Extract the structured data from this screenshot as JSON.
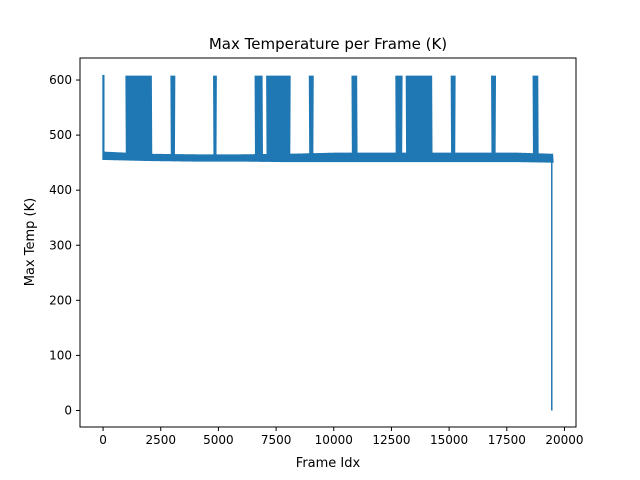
{
  "chart_data": {
    "type": "line",
    "title": "Max Temperature per Frame (K)",
    "xlabel": "Frame Idx",
    "ylabel": "Max Temp (K)",
    "xlim": [
      -1000,
      20500
    ],
    "ylim": [
      -30,
      640
    ],
    "x_ticks": [
      0,
      2500,
      5000,
      7500,
      10000,
      12500,
      15000,
      17500,
      20000
    ],
    "x_tick_labels": [
      "0",
      "2500",
      "5000",
      "7500",
      "10000",
      "12500",
      "15000",
      "17500",
      "20000"
    ],
    "y_ticks": [
      0,
      100,
      200,
      300,
      400,
      500,
      600
    ],
    "y_tick_labels": [
      "0",
      "100",
      "200",
      "300",
      "400",
      "500",
      "600"
    ],
    "grid": false,
    "color": "#1f77b4",
    "baseline": {
      "x": [
        0,
        2000,
        4000,
        6000,
        8000,
        10000,
        12000,
        14000,
        16000,
        18000,
        19500
      ],
      "low": [
        455,
        453,
        452,
        452,
        451,
        451,
        451,
        451,
        451,
        451,
        450
      ],
      "high": [
        470,
        466,
        465,
        465,
        466,
        468,
        468,
        468,
        468,
        468,
        466
      ]
    },
    "spikes": [
      {
        "x_start": 0,
        "x_end": 30,
        "peak": 608
      },
      {
        "x_start": 1000,
        "x_end": 2100,
        "peak": 608
      },
      {
        "x_start": 2950,
        "x_end": 3100,
        "peak": 608
      },
      {
        "x_start": 4800,
        "x_end": 4900,
        "peak": 608
      },
      {
        "x_start": 6600,
        "x_end": 6900,
        "peak": 608
      },
      {
        "x_start": 7100,
        "x_end": 8100,
        "peak": 608
      },
      {
        "x_start": 8950,
        "x_end": 9100,
        "peak": 608
      },
      {
        "x_start": 10800,
        "x_end": 11000,
        "peak": 608
      },
      {
        "x_start": 12700,
        "x_end": 12950,
        "peak": 608
      },
      {
        "x_start": 13150,
        "x_end": 14250,
        "peak": 608
      },
      {
        "x_start": 15100,
        "x_end": 15250,
        "peak": 608
      },
      {
        "x_start": 16850,
        "x_end": 17000,
        "peak": 608
      },
      {
        "x_start": 18650,
        "x_end": 18850,
        "peak": 608
      }
    ],
    "final_drop": {
      "x": 19450,
      "from": 462,
      "to": 0
    }
  }
}
